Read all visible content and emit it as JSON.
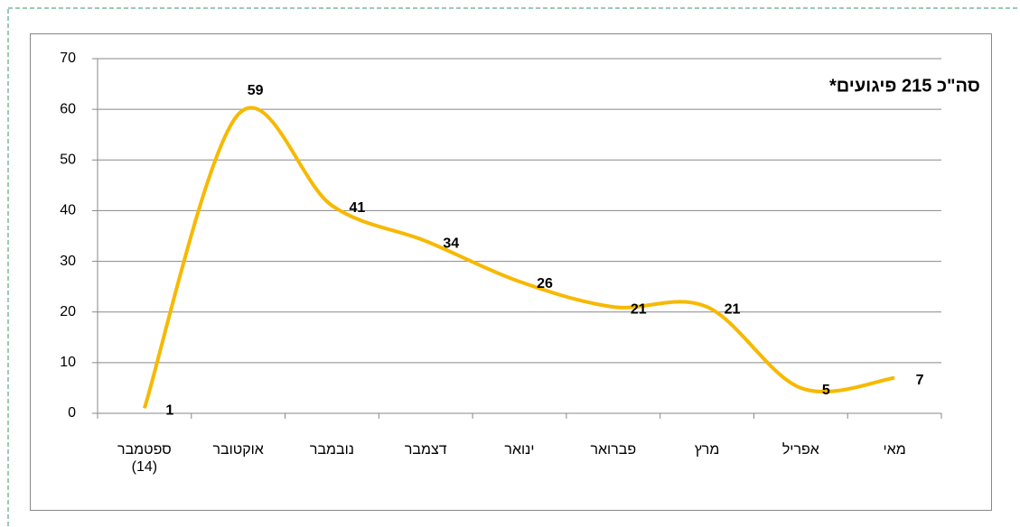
{
  "chart_data": {
    "type": "line",
    "annotation": "סה\"כ 215 פיגועים*",
    "categories": [
      "ספטמבר (14)",
      "אוקטובר",
      "נובמבר",
      "דצמבר",
      "ינואר",
      "פברואר",
      "מרץ",
      "אפריל",
      "מאי"
    ],
    "series": [
      {
        "color": "#f7b900",
        "values": [
          1,
          59,
          41,
          34,
          26,
          21,
          21,
          5,
          7
        ]
      }
    ],
    "ylim": [
      0,
      70
    ],
    "yticks": [
      0,
      10,
      20,
      30,
      40,
      50,
      60,
      70
    ],
    "grid": true
  }
}
